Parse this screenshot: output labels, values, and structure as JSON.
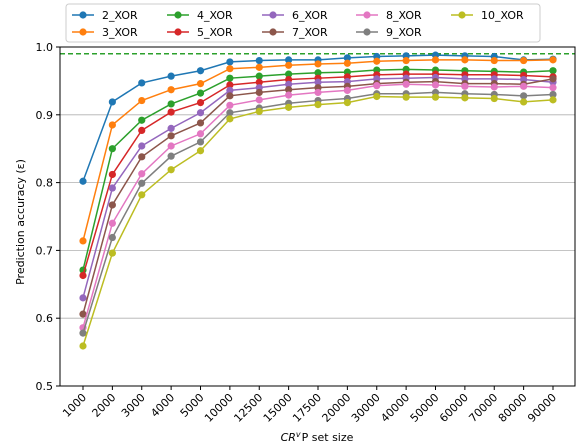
{
  "chart_data": {
    "type": "line",
    "xlabel": "CR",
    "xlabel_sup": "v",
    "xlabel_rest": "P set size",
    "ylabel": "Prediction accuracy  (ε)",
    "ylim": [
      0.5,
      1.0
    ],
    "yticks": [
      "0.5",
      "0.6",
      "0.7",
      "0.8",
      "0.9",
      "1.0"
    ],
    "grid": "horizontal",
    "legend_placement": "top-center, above plot, 5 columns",
    "reference_line": {
      "value": 0.99,
      "color": "#2ca02c",
      "style": "dashed"
    },
    "categories": [
      "1000",
      "2000",
      "3000",
      "4000",
      "5000",
      "10000",
      "12500",
      "15000",
      "17500",
      "20000",
      "30000",
      "40000",
      "50000",
      "60000",
      "70000",
      "80000",
      "90000"
    ],
    "series": [
      {
        "name": "2_XOR",
        "color": "#1f77b4",
        "values": [
          0.802,
          0.919,
          0.947,
          0.957,
          0.965,
          0.978,
          0.98,
          0.981,
          0.981,
          0.984,
          0.986,
          0.987,
          0.988,
          0.987,
          0.986,
          0.981,
          0.982
        ]
      },
      {
        "name": "3_XOR",
        "color": "#ff7f0e",
        "values": [
          0.714,
          0.885,
          0.921,
          0.937,
          0.946,
          0.968,
          0.97,
          0.973,
          0.975,
          0.976,
          0.979,
          0.98,
          0.981,
          0.981,
          0.98,
          0.98,
          0.981
        ]
      },
      {
        "name": "4_XOR",
        "color": "#2ca02c",
        "values": [
          0.671,
          0.85,
          0.892,
          0.916,
          0.932,
          0.954,
          0.957,
          0.96,
          0.962,
          0.963,
          0.966,
          0.967,
          0.966,
          0.965,
          0.964,
          0.963,
          0.965
        ]
      },
      {
        "name": "5_XOR",
        "color": "#d62728",
        "values": [
          0.663,
          0.812,
          0.877,
          0.904,
          0.918,
          0.944,
          0.948,
          0.952,
          0.954,
          0.956,
          0.959,
          0.96,
          0.96,
          0.959,
          0.959,
          0.958,
          0.956
        ]
      },
      {
        "name": "6_XOR",
        "color": "#9467bd",
        "values": [
          0.63,
          0.792,
          0.854,
          0.88,
          0.903,
          0.936,
          0.94,
          0.945,
          0.948,
          0.949,
          0.953,
          0.954,
          0.955,
          0.953,
          0.953,
          0.952,
          0.948
        ]
      },
      {
        "name": "7_XOR",
        "color": "#8c564b",
        "values": [
          0.606,
          0.767,
          0.838,
          0.869,
          0.888,
          0.928,
          0.933,
          0.937,
          0.94,
          0.942,
          0.946,
          0.948,
          0.949,
          0.946,
          0.946,
          0.945,
          0.953
        ]
      },
      {
        "name": "8_XOR",
        "color": "#e377c2",
        "values": [
          0.586,
          0.74,
          0.813,
          0.854,
          0.872,
          0.914,
          0.922,
          0.929,
          0.933,
          0.936,
          0.943,
          0.945,
          0.944,
          0.942,
          0.941,
          0.942,
          0.94
        ]
      },
      {
        "name": "9_XOR",
        "color": "#7f7f7f",
        "values": [
          0.578,
          0.719,
          0.799,
          0.839,
          0.86,
          0.903,
          0.91,
          0.917,
          0.921,
          0.924,
          0.931,
          0.931,
          0.933,
          0.931,
          0.93,
          0.928,
          0.93
        ]
      },
      {
        "name": "10_XOR",
        "color": "#bcbd22",
        "values": [
          0.559,
          0.696,
          0.782,
          0.819,
          0.847,
          0.894,
          0.905,
          0.911,
          0.915,
          0.918,
          0.927,
          0.926,
          0.926,
          0.925,
          0.924,
          0.919,
          0.922
        ]
      }
    ]
  }
}
